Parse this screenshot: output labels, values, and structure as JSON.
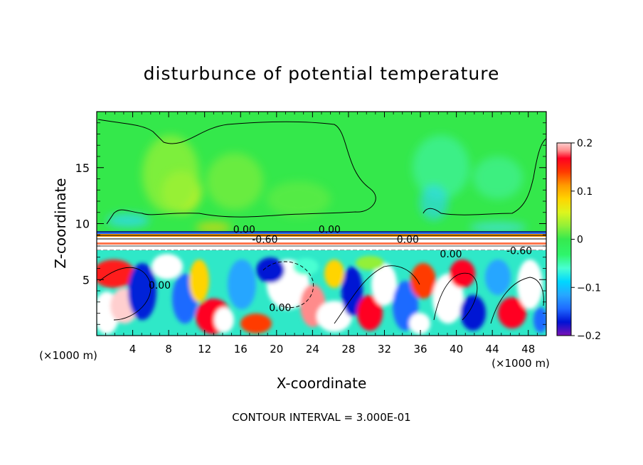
{
  "chart_data": {
    "type": "heatmap",
    "title": "disturbunce of potential temperature",
    "xlabel": "X-coordinate",
    "ylabel": "Z-coordinate",
    "x_unit_left": "(×1000 m)",
    "x_unit_right": "(×1000 m)",
    "footer": "CONTOUR INTERVAL = 3.000E-01",
    "xlim": [
      0,
      50
    ],
    "ylim": [
      0,
      20
    ],
    "xticks": [
      4,
      8,
      12,
      16,
      20,
      24,
      28,
      32,
      36,
      40,
      44,
      48
    ],
    "yticks": [
      5,
      10,
      15
    ],
    "colorbar": {
      "range": [
        -0.2,
        0.2
      ],
      "tick_values": [
        0.2,
        0.1,
        0,
        -0.1,
        -0.2
      ],
      "tick_labels": [
        "0.2",
        "0.1",
        "0",
        "−0.1",
        "−0.2"
      ],
      "colors": [
        "#7b12b4",
        "#0012d4",
        "#1f6bff",
        "#27a6ff",
        "#00d7ff",
        "#48ffd2",
        "#2ef56b",
        "#36e94e",
        "#93f037",
        "#ddf51e",
        "#ffd400",
        "#ff9a00",
        "#ff3a00",
        "#ff0020",
        "#ff8b8b",
        "#ffcfcf"
      ]
    },
    "contour_labels": [
      {
        "text": "0.00",
        "x": 16.4,
        "y": 9.5
      },
      {
        "text": "0.00",
        "x": 25.9,
        "y": 9.5
      },
      {
        "text": "-0.60",
        "x": 18.7,
        "y": 8.6
      },
      {
        "text": "0.00",
        "x": 34.6,
        "y": 8.6
      },
      {
        "text": "0.00",
        "x": 39.4,
        "y": 7.3
      },
      {
        "text": "-0.60",
        "x": 47.0,
        "y": 7.6
      },
      {
        "text": "0.00",
        "x": 7.0,
        "y": 4.5
      },
      {
        "text": "0.00",
        "x": 20.4,
        "y": 2.5
      }
    ]
  }
}
